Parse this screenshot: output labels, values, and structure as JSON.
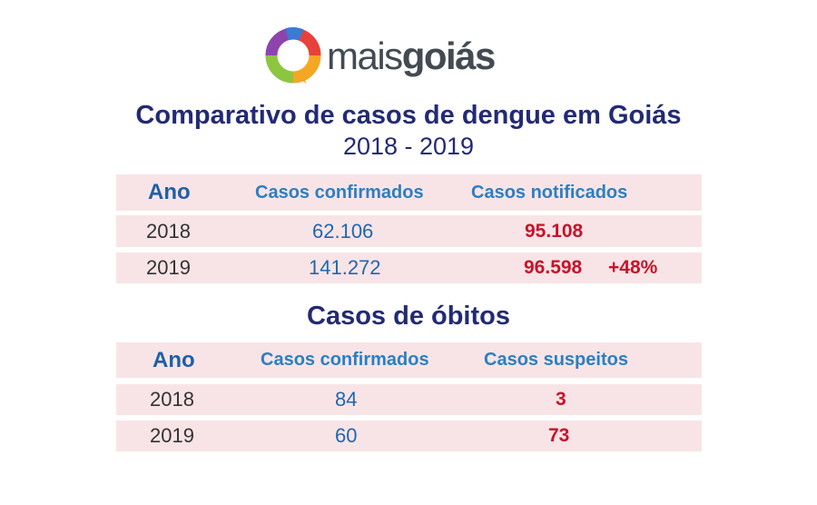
{
  "logo": {
    "light": "mais",
    "bold": "goiás"
  },
  "title": "Comparativo de casos de dengue em Goiás",
  "subtitle": "2018 - 2019",
  "dengue_table": {
    "headers": [
      "Ano",
      "Casos confirmados",
      "Casos notificados"
    ],
    "rows": [
      {
        "year": "2018",
        "confirmed": "62.106",
        "notified": "95.108",
        "change": ""
      },
      {
        "year": "2019",
        "confirmed": "141.272",
        "notified": "96.598",
        "change": "+48%"
      }
    ]
  },
  "deaths_title": "Casos de óbitos",
  "deaths_table": {
    "headers": [
      "Ano",
      "Casos confirmados",
      "Casos suspeitos"
    ],
    "rows": [
      {
        "year": "2018",
        "confirmed": "84",
        "suspected": "3"
      },
      {
        "year": "2019",
        "confirmed": "60",
        "suspected": "73"
      }
    ]
  },
  "colors": {
    "title": "#232a74",
    "header": "#2b7fc2",
    "confirmed": "#1f67b0",
    "highlight": "#c8122a",
    "row_background": "#f8e4e6"
  }
}
